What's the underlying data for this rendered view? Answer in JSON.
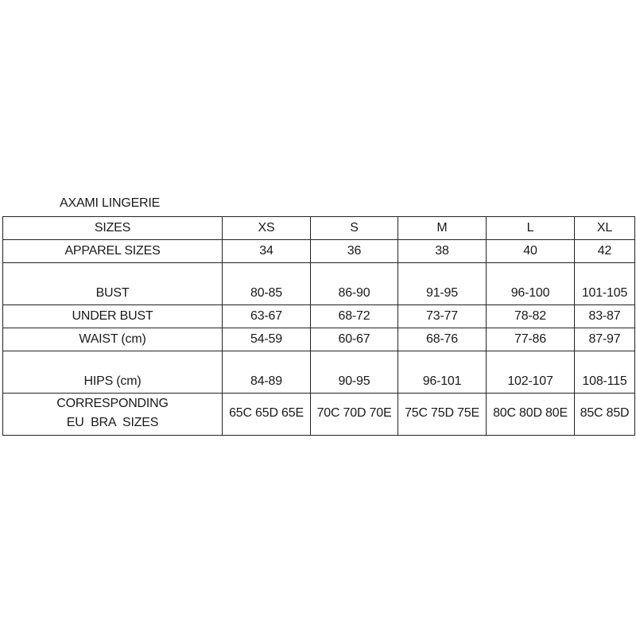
{
  "title": "AXAMI LINGERIE",
  "table": {
    "header": [
      "SIZES",
      "XS",
      "S",
      "M",
      "L",
      "XL"
    ],
    "rows": [
      {
        "label": "APPAREL SIZES",
        "values": [
          "34",
          "36",
          "38",
          "40",
          "42"
        ]
      },
      {
        "label": "BUST",
        "values": [
          "80-85",
          "86-90",
          "91-95",
          "96-100",
          "101-105"
        ]
      },
      {
        "label": "UNDER BUST",
        "values": [
          "63-67",
          "68-72",
          "73-77",
          "78-82",
          "83-87"
        ]
      },
      {
        "label": "WAIST (cm)",
        "values": [
          "54-59",
          "60-67",
          "68-76",
          "77-86",
          "87-97"
        ]
      },
      {
        "label": "HIPS (cm)",
        "values": [
          "84-89",
          "90-95",
          "96-101",
          "102-107",
          "108-115"
        ]
      },
      {
        "label": "CORRESPONDING\nEU  BRA  SIZES",
        "values": [
          "65C 65D 65E",
          "70C 70D 70E",
          "75C 75D 75E",
          "80C 80D 80E",
          "85C 85D"
        ]
      }
    ]
  }
}
